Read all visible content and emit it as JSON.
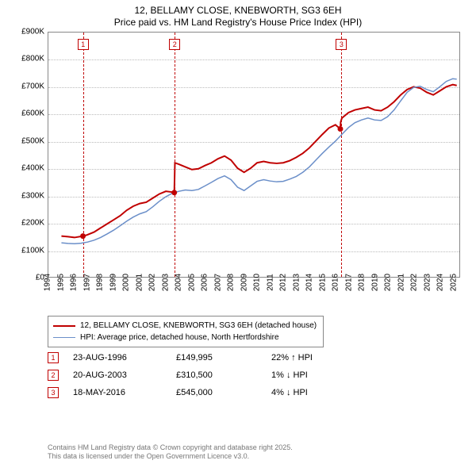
{
  "title": {
    "line1": "12, BELLAMY CLOSE, KNEBWORTH, SG3 6EH",
    "line2": "Price paid vs. HM Land Registry's House Price Index (HPI)"
  },
  "chart": {
    "type": "line",
    "ylim": [
      0,
      900000
    ],
    "ytick_step": 100000,
    "ytick_labels": [
      "£0",
      "£100K",
      "£200K",
      "£300K",
      "£400K",
      "£500K",
      "£600K",
      "£700K",
      "£800K",
      "£900K"
    ],
    "xlim": [
      1994,
      2025.5
    ],
    "xtick_step": 1,
    "xtick_labels": [
      "1994",
      "1995",
      "1996",
      "1997",
      "1998",
      "1999",
      "2000",
      "2001",
      "2002",
      "2003",
      "2004",
      "2005",
      "2006",
      "2007",
      "2008",
      "2009",
      "2010",
      "2011",
      "2012",
      "2013",
      "2014",
      "2015",
      "2016",
      "2017",
      "2018",
      "2019",
      "2020",
      "2021",
      "2022",
      "2023",
      "2024",
      "2025"
    ],
    "grid_color": "#bbbbbb",
    "background_color": "#ffffff",
    "border_color": "#888888",
    "series": [
      {
        "name": "12, BELLAMY CLOSE, KNEBWORTH, SG3 6EH (detached house)",
        "color": "#c00000",
        "width": 2,
        "points": [
          [
            1995.0,
            150000
          ],
          [
            1995.5,
            148000
          ],
          [
            1996.0,
            145000
          ],
          [
            1996.65,
            149995
          ],
          [
            1996.7,
            149995
          ],
          [
            1997.0,
            155000
          ],
          [
            1997.5,
            165000
          ],
          [
            1998.0,
            180000
          ],
          [
            1998.5,
            195000
          ],
          [
            1999.0,
            210000
          ],
          [
            1999.5,
            225000
          ],
          [
            2000.0,
            245000
          ],
          [
            2000.5,
            260000
          ],
          [
            2001.0,
            270000
          ],
          [
            2001.5,
            275000
          ],
          [
            2002.0,
            290000
          ],
          [
            2002.5,
            305000
          ],
          [
            2003.0,
            315000
          ],
          [
            2003.5,
            312000
          ],
          [
            2003.65,
            310500
          ],
          [
            2003.7,
            420000
          ],
          [
            2004.0,
            415000
          ],
          [
            2004.5,
            405000
          ],
          [
            2005.0,
            395000
          ],
          [
            2005.5,
            398000
          ],
          [
            2006.0,
            410000
          ],
          [
            2006.5,
            420000
          ],
          [
            2007.0,
            435000
          ],
          [
            2007.5,
            445000
          ],
          [
            2008.0,
            430000
          ],
          [
            2008.5,
            400000
          ],
          [
            2009.0,
            385000
          ],
          [
            2009.5,
            400000
          ],
          [
            2010.0,
            420000
          ],
          [
            2010.5,
            425000
          ],
          [
            2011.0,
            420000
          ],
          [
            2011.5,
            418000
          ],
          [
            2012.0,
            420000
          ],
          [
            2012.5,
            428000
          ],
          [
            2013.0,
            440000
          ],
          [
            2013.5,
            455000
          ],
          [
            2014.0,
            475000
          ],
          [
            2014.5,
            500000
          ],
          [
            2015.0,
            525000
          ],
          [
            2015.5,
            548000
          ],
          [
            2016.0,
            560000
          ],
          [
            2016.38,
            545000
          ],
          [
            2016.4,
            570000
          ],
          [
            2016.5,
            585000
          ],
          [
            2017.0,
            605000
          ],
          [
            2017.5,
            615000
          ],
          [
            2018.0,
            620000
          ],
          [
            2018.5,
            625000
          ],
          [
            2019.0,
            615000
          ],
          [
            2019.5,
            612000
          ],
          [
            2020.0,
            625000
          ],
          [
            2020.5,
            645000
          ],
          [
            2021.0,
            670000
          ],
          [
            2021.5,
            690000
          ],
          [
            2022.0,
            700000
          ],
          [
            2022.5,
            695000
          ],
          [
            2023.0,
            680000
          ],
          [
            2023.5,
            670000
          ],
          [
            2024.0,
            685000
          ],
          [
            2024.5,
            700000
          ],
          [
            2025.0,
            708000
          ],
          [
            2025.3,
            705000
          ]
        ]
      },
      {
        "name": "HPI: Average price, detached house, North Hertfordshire",
        "color": "#6b8fc9",
        "width": 1.5,
        "points": [
          [
            1995.0,
            125000
          ],
          [
            1995.5,
            123000
          ],
          [
            1996.0,
            122000
          ],
          [
            1996.5,
            124000
          ],
          [
            1997.0,
            128000
          ],
          [
            1997.5,
            135000
          ],
          [
            1998.0,
            145000
          ],
          [
            1998.5,
            158000
          ],
          [
            1999.0,
            172000
          ],
          [
            1999.5,
            188000
          ],
          [
            2000.0,
            205000
          ],
          [
            2000.5,
            220000
          ],
          [
            2001.0,
            232000
          ],
          [
            2001.5,
            240000
          ],
          [
            2002.0,
            258000
          ],
          [
            2002.5,
            278000
          ],
          [
            2003.0,
            295000
          ],
          [
            2003.5,
            308000
          ],
          [
            2004.0,
            315000
          ],
          [
            2004.5,
            320000
          ],
          [
            2005.0,
            318000
          ],
          [
            2005.5,
            322000
          ],
          [
            2006.0,
            335000
          ],
          [
            2006.5,
            348000
          ],
          [
            2007.0,
            362000
          ],
          [
            2007.5,
            372000
          ],
          [
            2008.0,
            358000
          ],
          [
            2008.5,
            330000
          ],
          [
            2009.0,
            318000
          ],
          [
            2009.5,
            335000
          ],
          [
            2010.0,
            352000
          ],
          [
            2010.5,
            358000
          ],
          [
            2011.0,
            353000
          ],
          [
            2011.5,
            350000
          ],
          [
            2012.0,
            352000
          ],
          [
            2012.5,
            360000
          ],
          [
            2013.0,
            370000
          ],
          [
            2013.5,
            385000
          ],
          [
            2014.0,
            405000
          ],
          [
            2014.5,
            430000
          ],
          [
            2015.0,
            455000
          ],
          [
            2015.5,
            478000
          ],
          [
            2016.0,
            500000
          ],
          [
            2016.5,
            525000
          ],
          [
            2017.0,
            550000
          ],
          [
            2017.5,
            568000
          ],
          [
            2018.0,
            578000
          ],
          [
            2018.5,
            585000
          ],
          [
            2019.0,
            578000
          ],
          [
            2019.5,
            576000
          ],
          [
            2020.0,
            590000
          ],
          [
            2020.5,
            615000
          ],
          [
            2021.0,
            648000
          ],
          [
            2021.5,
            680000
          ],
          [
            2022.0,
            698000
          ],
          [
            2022.5,
            702000
          ],
          [
            2023.0,
            690000
          ],
          [
            2023.5,
            682000
          ],
          [
            2024.0,
            700000
          ],
          [
            2024.5,
            720000
          ],
          [
            2025.0,
            730000
          ],
          [
            2025.3,
            728000
          ]
        ]
      }
    ],
    "markers": [
      {
        "label": "1",
        "x": 1996.65,
        "y": 149995,
        "line_color": "#c00000"
      },
      {
        "label": "2",
        "x": 2003.65,
        "y": 310500,
        "line_color": "#c00000"
      },
      {
        "label": "3",
        "x": 2016.38,
        "y": 545000,
        "line_color": "#c00000"
      }
    ]
  },
  "legend": {
    "items": [
      {
        "text": "12, BELLAMY CLOSE, KNEBWORTH, SG3 6EH (detached house)",
        "color": "#c00000",
        "width": 2
      },
      {
        "text": "HPI: Average price, detached house, North Hertfordshire",
        "color": "#6b8fc9",
        "width": 1.5
      }
    ]
  },
  "transactions": [
    {
      "marker": "1",
      "date": "23-AUG-1996",
      "price": "£149,995",
      "diff": "22% ↑ HPI"
    },
    {
      "marker": "2",
      "date": "20-AUG-2003",
      "price": "£310,500",
      "diff": "1% ↓ HPI"
    },
    {
      "marker": "3",
      "date": "18-MAY-2016",
      "price": "£545,000",
      "diff": "4% ↓ HPI"
    }
  ],
  "footer": {
    "line1": "Contains HM Land Registry data © Crown copyright and database right 2025.",
    "line2": "This data is licensed under the Open Government Licence v3.0."
  }
}
